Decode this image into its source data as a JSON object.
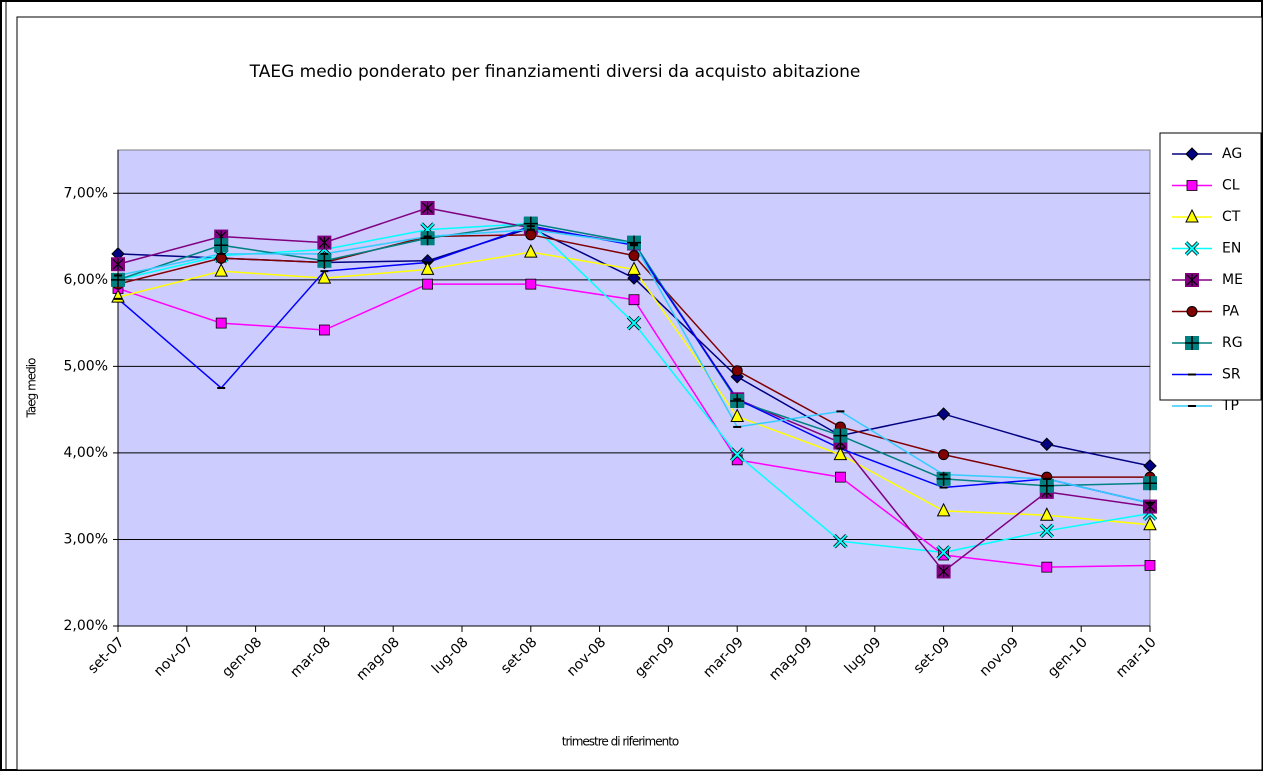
{
  "chart_data": {
    "type": "line",
    "title": "TAEG medio ponderato per finanziamenti diversi da acquisto abitazione",
    "y_label": "Taeg medio",
    "x_label": "trimestre di riferimento",
    "x": [
      "2007-09",
      "2007-12",
      "2008-03",
      "2008-06",
      "2008-09",
      "2008-12",
      "2009-03",
      "2009-06",
      "2009-09",
      "2009-12",
      "2010-03"
    ],
    "xlim": [
      "2007-09",
      "2010-03"
    ],
    "xticks": [
      {
        "value": "2007-09",
        "label": "set-07"
      },
      {
        "value": "2007-11",
        "label": "nov-07"
      },
      {
        "value": "2008-01",
        "label": "gen-08"
      },
      {
        "value": "2008-03",
        "label": "mar-08"
      },
      {
        "value": "2008-05",
        "label": "mag-08"
      },
      {
        "value": "2008-07",
        "label": "lug-08"
      },
      {
        "value": "2008-09",
        "label": "set-08"
      },
      {
        "value": "2008-11",
        "label": "nov-08"
      },
      {
        "value": "2009-01",
        "label": "gen-09"
      },
      {
        "value": "2009-03",
        "label": "mar-09"
      },
      {
        "value": "2009-05",
        "label": "mag-09"
      },
      {
        "value": "2009-07",
        "label": "lug-09"
      },
      {
        "value": "2009-09",
        "label": "set-09"
      },
      {
        "value": "2009-11",
        "label": "nov-09"
      },
      {
        "value": "2010-01",
        "label": "gen-10"
      },
      {
        "value": "2010-03",
        "label": "mar-10"
      }
    ],
    "ylim": [
      2,
      7.5
    ],
    "yticks": [
      {
        "value": 2,
        "label": "2,00%"
      },
      {
        "value": 3,
        "label": "3,00%"
      },
      {
        "value": 4,
        "label": "4,00%"
      },
      {
        "value": 5,
        "label": "5,00%"
      },
      {
        "value": 6,
        "label": "6,00%"
      },
      {
        "value": 7,
        "label": "7,00%"
      }
    ],
    "grid": true,
    "legend": "right",
    "series": [
      {
        "name": "AG",
        "color": "#000080",
        "marker": "diamond",
        "values": [
          6.3,
          6.25,
          6.2,
          6.22,
          6.6,
          6.02,
          4.88,
          4.2,
          4.45,
          4.1,
          3.85
        ]
      },
      {
        "name": "CL",
        "color": "#ff00ff",
        "marker": "square",
        "values": [
          5.9,
          5.5,
          5.42,
          5.95,
          5.95,
          5.77,
          3.92,
          3.72,
          2.82,
          2.68,
          2.7
        ]
      },
      {
        "name": "CT",
        "color": "#ffff00",
        "marker": "triangle",
        "values": [
          5.8,
          6.1,
          6.02,
          6.12,
          6.32,
          6.12,
          4.42,
          3.98,
          3.33,
          3.28,
          3.17
        ]
      },
      {
        "name": "EN",
        "color": "#00ffff",
        "marker": "x",
        "values": [
          6.0,
          6.28,
          6.35,
          6.58,
          6.65,
          5.5,
          3.98,
          2.98,
          2.85,
          3.1,
          3.3
        ]
      },
      {
        "name": "ME",
        "color": "#800080",
        "marker": "star",
        "values": [
          6.18,
          6.5,
          6.43,
          6.83,
          6.6,
          6.42,
          4.62,
          4.12,
          2.63,
          3.55,
          3.38
        ]
      },
      {
        "name": "PA",
        "color": "#800000",
        "marker": "circle",
        "values": [
          5.95,
          6.25,
          6.2,
          6.5,
          6.52,
          6.28,
          4.95,
          4.3,
          3.98,
          3.72,
          3.72
        ]
      },
      {
        "name": "RG",
        "color": "#008080",
        "marker": "plus",
        "values": [
          6.0,
          6.4,
          6.22,
          6.48,
          6.65,
          6.43,
          4.6,
          4.2,
          3.7,
          3.62,
          3.65
        ]
      },
      {
        "name": "SR",
        "color": "#0000ff",
        "marker": "dash",
        "values": [
          5.78,
          4.75,
          6.1,
          6.2,
          6.62,
          6.4,
          4.62,
          4.05,
          3.6,
          3.7,
          3.42
        ]
      },
      {
        "name": "TP",
        "color": "#33ccff",
        "marker": "dash",
        "values": [
          6.05,
          6.3,
          6.3,
          6.5,
          6.58,
          6.42,
          4.3,
          4.48,
          3.75,
          3.7,
          3.42
        ]
      }
    ]
  }
}
